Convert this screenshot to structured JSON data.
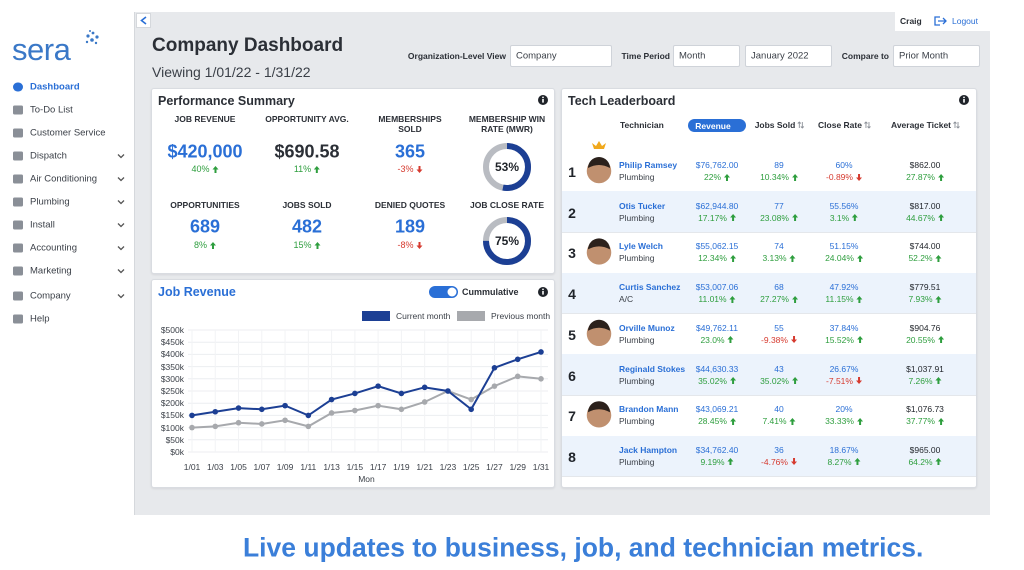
{
  "sidebar": {
    "brand": "sera",
    "nav": [
      {
        "label": "Dashboard",
        "active": true,
        "expandable": false
      },
      {
        "label": "To-Do List",
        "active": false,
        "expandable": false
      },
      {
        "label": "Customer Service",
        "active": false,
        "expandable": false
      },
      {
        "label": "Dispatch",
        "active": false,
        "expandable": true
      },
      {
        "label": "Air Conditioning",
        "active": false,
        "expandable": true
      },
      {
        "label": "Plumbing",
        "active": false,
        "expandable": true
      },
      {
        "label": "Install",
        "active": false,
        "expandable": true
      },
      {
        "label": "Accounting",
        "active": false,
        "expandable": true
      },
      {
        "label": "Marketing",
        "active": false,
        "expandable": true
      },
      {
        "label": "Company",
        "active": false,
        "expandable": true
      },
      {
        "label": "Help",
        "active": false,
        "expandable": false
      }
    ]
  },
  "header": {
    "title": "Company Dashboard",
    "subtitle": "Viewing 1/01/22 - 1/31/22",
    "user": "Craig",
    "logout": "Logout",
    "filters": [
      {
        "label": "Organization-Level View",
        "selects": [
          "Company"
        ]
      },
      {
        "label": "Time Period",
        "selects": [
          "Month",
          "January 2022"
        ]
      },
      {
        "label": "Compare to",
        "selects": [
          "Prior Month"
        ]
      }
    ]
  },
  "performance": {
    "title": "Performance Summary",
    "metrics": [
      {
        "label": "JOB REVENUE",
        "value": "$420,000",
        "change": "40%",
        "color": "#2a6fd6"
      },
      {
        "label": "OPPORTUNITY AVG.",
        "value": "$690.58",
        "change": "11%",
        "color": "#2b2f36"
      },
      {
        "label": "MEMBERSHIPS SOLD",
        "value": "365",
        "change": "-3%",
        "color": "#2a6fd6"
      },
      {
        "label": "MEMBERSHIP WIN RATE (MWR)",
        "gauge": 53,
        "gauge_label": "53%",
        "color": "#1c3f94"
      },
      {
        "label": "OPPORTUNITIES",
        "value": "689",
        "change": "8%",
        "color": "#2a6fd6"
      },
      {
        "label": "JOBS SOLD",
        "value": "482",
        "change": "15%",
        "color": "#2a6fd6"
      },
      {
        "label": "DENIED QUOTES",
        "value": "189",
        "change": "-8%",
        "color": "#2a6fd6"
      },
      {
        "label": "JOB CLOSE RATE",
        "gauge": 75,
        "gauge_label": "75%",
        "color": "#1c3f94"
      }
    ]
  },
  "chart_data": {
    "type": "line",
    "title": "Job Revenue",
    "toggle": "Cummulative",
    "toggle_on": true,
    "x_label": "Mon",
    "categories": [
      "1/01",
      "1/03",
      "1/05",
      "1/07",
      "1/09",
      "1/11",
      "1/13",
      "1/15",
      "1/17",
      "1/19",
      "1/21",
      "1/23",
      "1/25",
      "1/27",
      "1/29",
      "1/31"
    ],
    "series": [
      {
        "name": "Current month",
        "color": "#1c3f94",
        "values": [
          150000,
          165000,
          180000,
          175000,
          190000,
          150000,
          215000,
          240000,
          270000,
          240000,
          265000,
          250000,
          175000,
          345000,
          380000,
          410000
        ]
      },
      {
        "name": "Previous month",
        "color": "#a7a9ad",
        "values": [
          100000,
          105000,
          120000,
          115000,
          130000,
          105000,
          160000,
          170000,
          190000,
          175000,
          205000,
          250000,
          215000,
          270000,
          310000,
          300000
        ]
      }
    ],
    "ylim": [
      0,
      500000
    ],
    "yticks": [
      {
        "value": 0,
        "label": "$0k"
      },
      {
        "value": 50000,
        "label": "$50k"
      },
      {
        "value": 100000,
        "label": "$100k"
      },
      {
        "value": 150000,
        "label": "$150k"
      },
      {
        "value": 200000,
        "label": "$200k"
      },
      {
        "value": 250000,
        "label": "$250k"
      },
      {
        "value": 300000,
        "label": "$300k"
      },
      {
        "value": 350000,
        "label": "$350k"
      },
      {
        "value": 400000,
        "label": "$400k"
      },
      {
        "value": 450000,
        "label": "$450k"
      },
      {
        "value": 500000,
        "label": "$500k"
      }
    ],
    "grid": true
  },
  "leaderboard": {
    "title": "Tech Leaderboard",
    "columns": [
      "Technician",
      "Revenue",
      "Jobs Sold",
      "Close Rate",
      "Average Ticket"
    ],
    "active_column": 1,
    "rows": [
      {
        "rank": 1,
        "name": "Philip Ramsey",
        "trade": "Plumbing",
        "revenue": "$76,762.00",
        "revenue_change": "22%",
        "jobs": "89",
        "jobs_change": "10.34%",
        "close_rate": "60%",
        "close_rate_change": "-0.89%",
        "ticket": "$862.00",
        "ticket_change": "27.87%"
      },
      {
        "rank": 2,
        "name": "Otis Tucker",
        "trade": "Plumbing",
        "revenue": "$62,944.80",
        "revenue_change": "17.17%",
        "jobs": "77",
        "jobs_change": "23.08%",
        "close_rate": "55.56%",
        "close_rate_change": "3.1%",
        "ticket": "$817.00",
        "ticket_change": "44.67%"
      },
      {
        "rank": 3,
        "name": "Lyle Welch",
        "trade": "Plumbing",
        "revenue": "$55,062.15",
        "revenue_change": "12.34%",
        "jobs": "74",
        "jobs_change": "3.13%",
        "close_rate": "51.15%",
        "close_rate_change": "24.04%",
        "ticket": "$744.00",
        "ticket_change": "52.2%"
      },
      {
        "rank": 4,
        "name": "Curtis Sanchez",
        "trade": "A/C",
        "revenue": "$53,007.06",
        "revenue_change": "11.01%",
        "jobs": "68",
        "jobs_change": "27.27%",
        "close_rate": "47.92%",
        "close_rate_change": "11.15%",
        "ticket": "$779.51",
        "ticket_change": "7.93%"
      },
      {
        "rank": 5,
        "name": "Orville Munoz",
        "trade": "Plumbing",
        "revenue": "$49,762.11",
        "revenue_change": "23.0%",
        "jobs": "55",
        "jobs_change": "-9.38%",
        "close_rate": "37.84%",
        "close_rate_change": "15.52%",
        "ticket": "$904.76",
        "ticket_change": "20.55%"
      },
      {
        "rank": 6,
        "name": "Reginald Stokes",
        "trade": "Plumbing",
        "revenue": "$44,630.33",
        "revenue_change": "35.02%",
        "jobs": "43",
        "jobs_change": "35.02%",
        "close_rate": "26.67%",
        "close_rate_change": "-7.51%",
        "ticket": "$1,037.91",
        "ticket_change": "7.26%"
      },
      {
        "rank": 7,
        "name": "Brandon Mann",
        "trade": "Plumbing",
        "revenue": "$43,069.21",
        "revenue_change": "28.45%",
        "jobs": "40",
        "jobs_change": "7.41%",
        "close_rate": "20%",
        "close_rate_change": "33.33%",
        "ticket": "$1,076.73",
        "ticket_change": "37.77%"
      },
      {
        "rank": 8,
        "name": "Jack Hampton",
        "trade": "Plumbing",
        "revenue": "$34,762.40",
        "revenue_change": "9.19%",
        "jobs": "36",
        "jobs_change": "-4.76%",
        "close_rate": "18.67%",
        "close_rate_change": "8.27%",
        "ticket": "$965.00",
        "ticket_change": "64.2%"
      }
    ]
  },
  "banner": "Live updates to business, job, and technician metrics."
}
